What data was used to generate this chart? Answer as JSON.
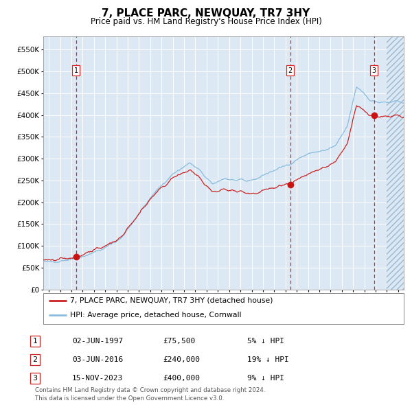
{
  "title": "7, PLACE PARC, NEWQUAY, TR7 3HY",
  "subtitle": "Price paid vs. HM Land Registry's House Price Index (HPI)",
  "title_fontsize": 11,
  "subtitle_fontsize": 8.5,
  "bg_color": "#dce9f5",
  "hatch_color": "#aec8e0",
  "grid_color": "#ffffff",
  "hpi_color": "#88bbdd",
  "price_color": "#cc2222",
  "sale_marker_color": "#cc1111",
  "dashed_line_color": "#dd2222",
  "ylim": [
    0,
    580000
  ],
  "yticks": [
    0,
    50000,
    100000,
    150000,
    200000,
    250000,
    300000,
    350000,
    400000,
    450000,
    500000,
    550000
  ],
  "xlim_start": 1994.5,
  "xlim_end": 2026.5,
  "sale_dates_year": [
    1997.42,
    2016.42,
    2023.87
  ],
  "sale_prices": [
    75500,
    240000,
    400000
  ],
  "sale_labels": [
    "1",
    "2",
    "3"
  ],
  "legend_entries": [
    "7, PLACE PARC, NEWQUAY, TR7 3HY (detached house)",
    "HPI: Average price, detached house, Cornwall"
  ],
  "table_rows": [
    [
      "1",
      "02-JUN-1997",
      "£75,500",
      "5% ↓ HPI"
    ],
    [
      "2",
      "03-JUN-2016",
      "£240,000",
      "19% ↓ HPI"
    ],
    [
      "3",
      "15-NOV-2023",
      "£400,000",
      "9% ↓ HPI"
    ]
  ],
  "footnote": "Contains HM Land Registry data © Crown copyright and database right 2024.\nThis data is licensed under the Open Government Licence v3.0.",
  "hatch_start_year": 2024.95
}
